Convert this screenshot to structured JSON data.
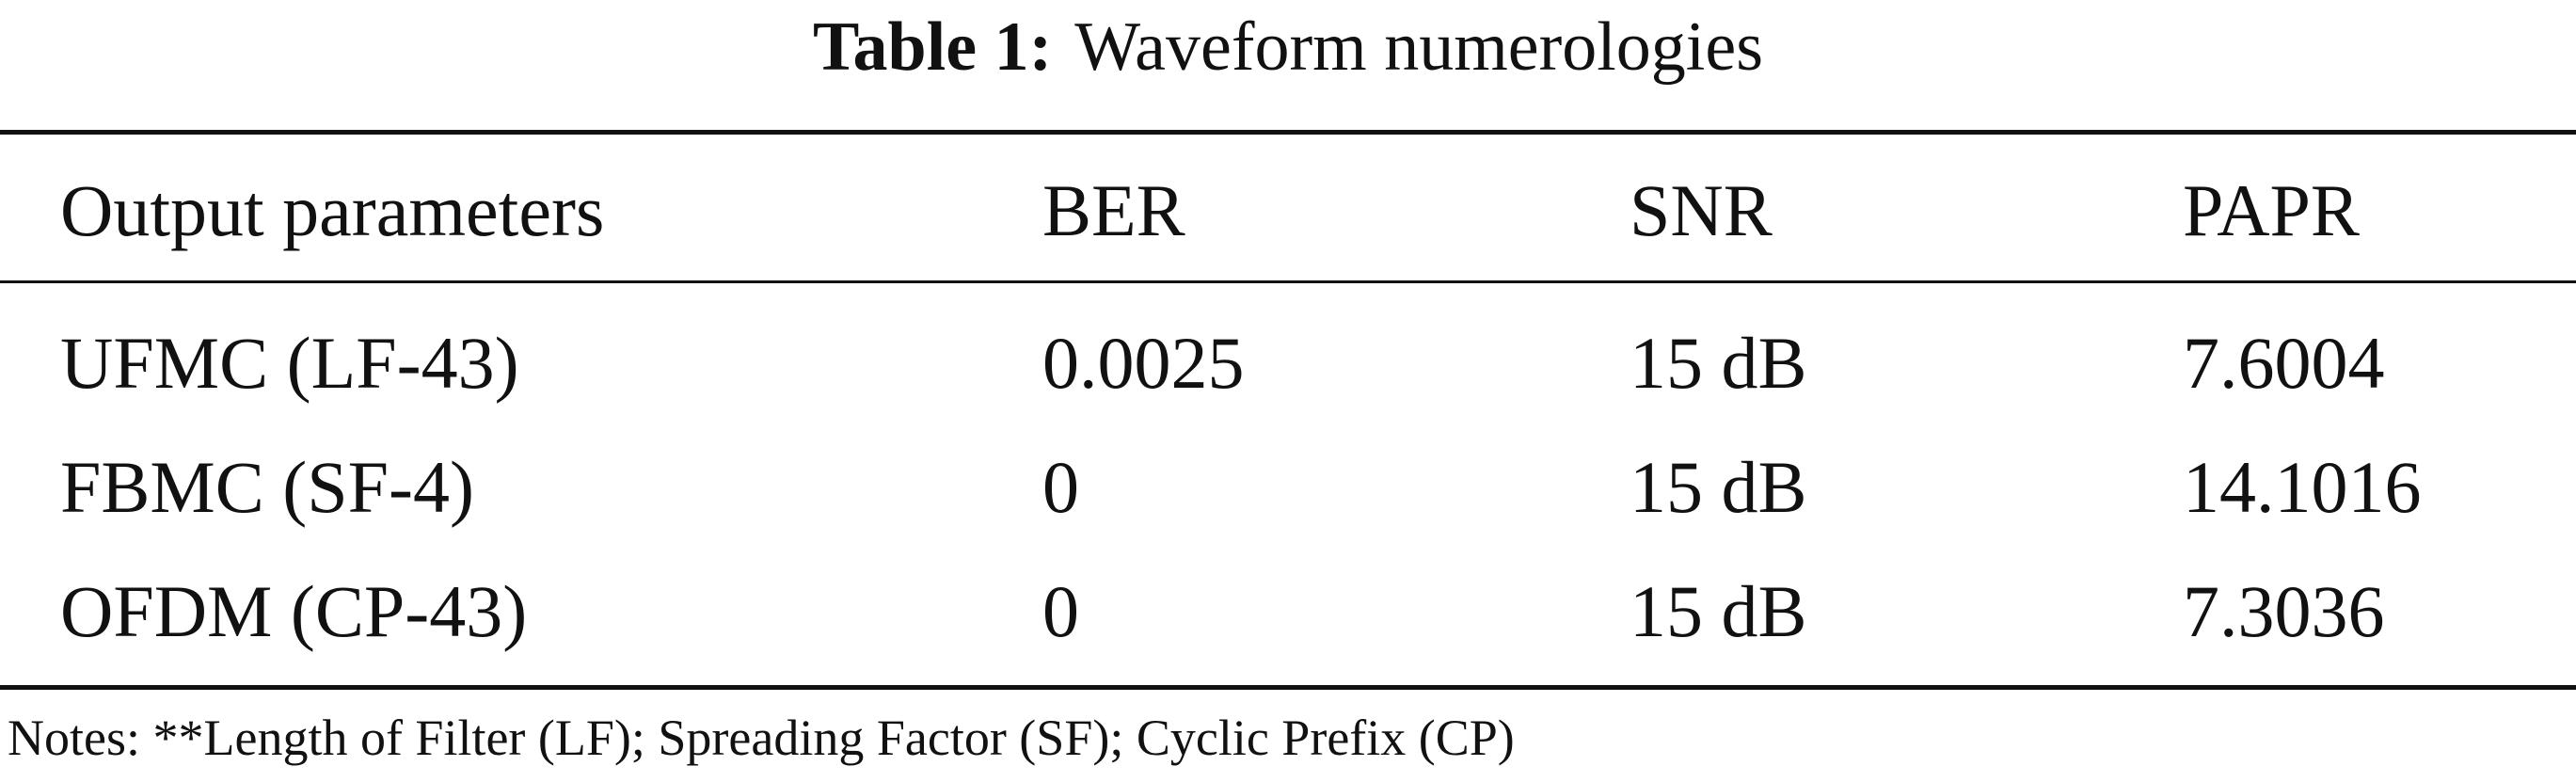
{
  "title": {
    "label": "Table 1:",
    "text": "Waveform numerologies"
  },
  "table": {
    "headers": [
      "Output parameters",
      "BER",
      "SNR",
      "PAPR"
    ],
    "rows": [
      [
        "UFMC (LF-43)",
        "0.0025",
        "15 dB",
        "7.6004"
      ],
      [
        "FBMC (SF-4)",
        "0",
        "15 dB",
        "14.1016"
      ],
      [
        "OFDM (CP-43)",
        "0",
        "15 dB",
        "7.3036"
      ]
    ]
  },
  "notes": "Notes: **Length of Filter (LF); Spreading Factor (SF); Cyclic Prefix (CP)"
}
